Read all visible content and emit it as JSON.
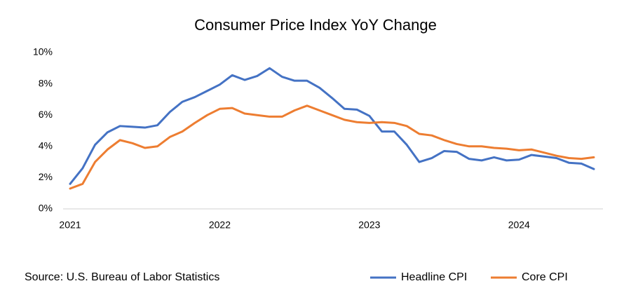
{
  "chart_data": {
    "type": "line",
    "title": "Consumer Price Index YoY Change",
    "source": "Source: U.S. Bureau of Labor Statistics",
    "categories": [
      "2021",
      null,
      null,
      null,
      null,
      null,
      null,
      null,
      null,
      null,
      null,
      null,
      "2022",
      null,
      null,
      null,
      null,
      null,
      null,
      null,
      null,
      null,
      null,
      null,
      "2023",
      null,
      null,
      null,
      null,
      null,
      null,
      null,
      null,
      null,
      null,
      null,
      "2024",
      null,
      null,
      null,
      null,
      null,
      null
    ],
    "series": [
      {
        "name": "Headline CPI",
        "color": "#4472c4",
        "values": [
          1.6,
          2.6,
          4.1,
          4.9,
          5.3,
          5.25,
          5.2,
          5.35,
          6.2,
          6.85,
          7.15,
          7.55,
          7.95,
          8.55,
          8.25,
          8.5,
          9.0,
          8.45,
          8.2,
          8.2,
          7.75,
          7.1,
          6.4,
          6.35,
          5.95,
          4.95,
          4.95,
          4.1,
          3.0,
          3.25,
          3.7,
          3.65,
          3.2,
          3.1,
          3.3,
          3.1,
          3.15,
          3.45,
          3.35,
          3.25,
          2.95,
          2.9,
          2.55
        ]
      },
      {
        "name": "Core CPI",
        "color": "#ed7d31",
        "values": [
          1.3,
          1.6,
          3.0,
          3.8,
          4.4,
          4.2,
          3.9,
          4.0,
          4.6,
          4.95,
          5.5,
          6.0,
          6.4,
          6.45,
          6.1,
          6.0,
          5.9,
          5.9,
          6.3,
          6.6,
          6.3,
          6.0,
          5.7,
          5.55,
          5.5,
          5.55,
          5.5,
          5.3,
          4.8,
          4.7,
          4.4,
          4.15,
          4.0,
          4.0,
          3.9,
          3.85,
          3.75,
          3.8,
          3.6,
          3.4,
          3.25,
          3.2,
          3.3
        ]
      }
    ],
    "ylim": [
      0,
      10
    ],
    "yticks": [
      {
        "value": 0,
        "label": "0%"
      },
      {
        "value": 2,
        "label": "2%"
      },
      {
        "value": 4,
        "label": "4%"
      },
      {
        "value": 6,
        "label": "6%"
      },
      {
        "value": 8,
        "label": "8%"
      },
      {
        "value": 10,
        "label": "10%"
      }
    ],
    "grid": false,
    "legend": "bottom-right"
  }
}
